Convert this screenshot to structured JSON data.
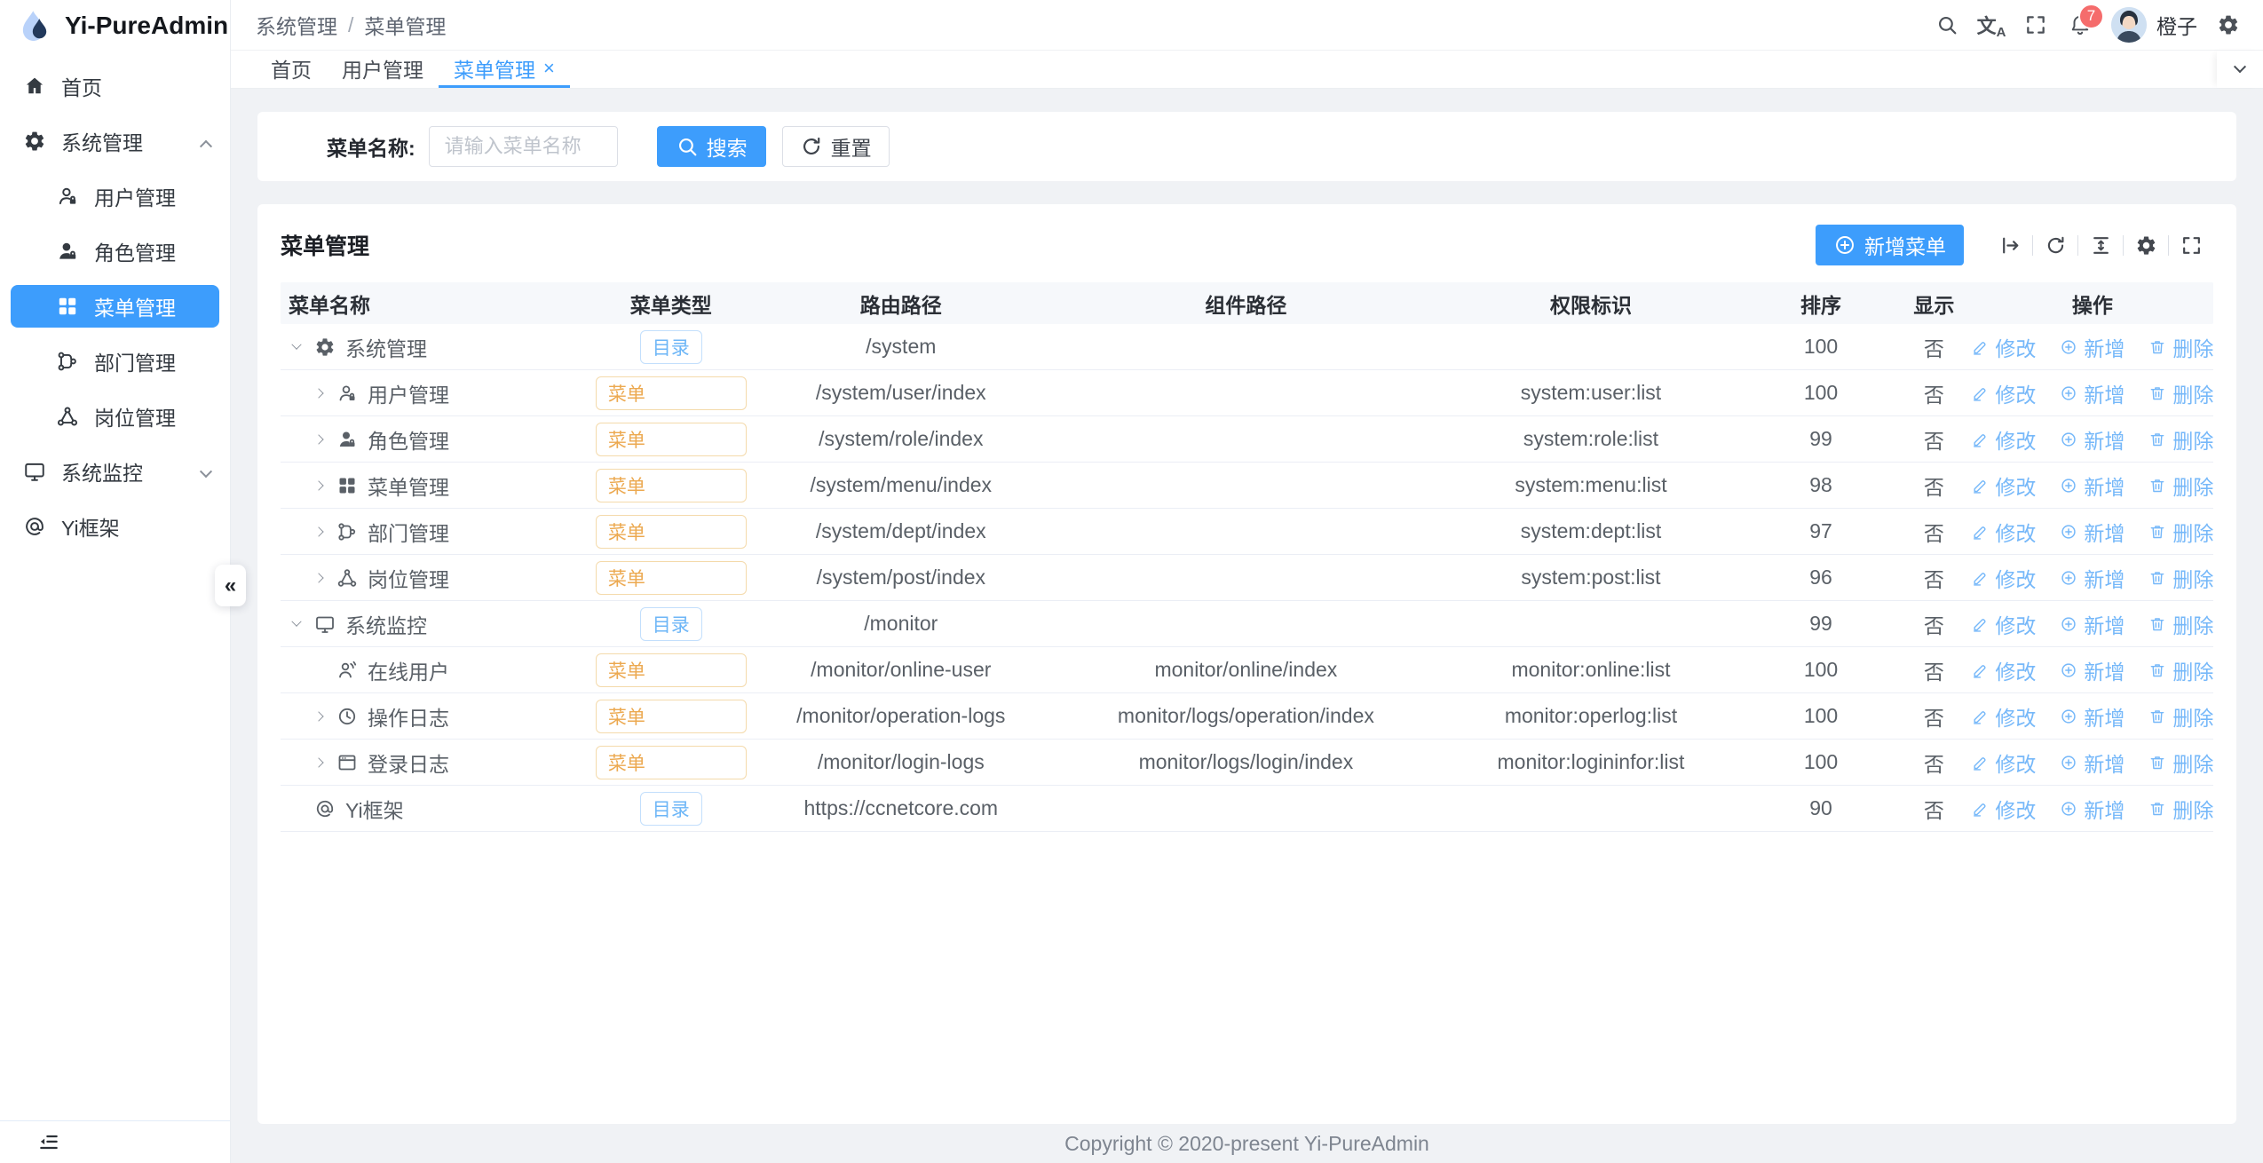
{
  "app": {
    "name": "Yi-PureAdmin"
  },
  "header": {
    "breadcrumb": {
      "items": [
        "系统管理",
        "菜单管理"
      ],
      "separator": "/"
    },
    "icons": [
      "search-icon",
      "translate-icon",
      "fullscreen-icon",
      "bell-icon",
      "gear-icon"
    ],
    "notification_count": "7",
    "username": "橙子"
  },
  "tabbar": {
    "tabs": [
      {
        "key": "home",
        "label": "首页",
        "active": false,
        "closable": false
      },
      {
        "key": "user-mgmt",
        "label": "用户管理",
        "active": false,
        "closable": false
      },
      {
        "key": "menu-mgmt",
        "label": "菜单管理",
        "active": true,
        "closable": true
      }
    ]
  },
  "sidebar": {
    "collapse_glyph": "«",
    "items": [
      {
        "key": "home",
        "icon": "home-icon",
        "label": "首页",
        "child": false
      },
      {
        "key": "system-mgmt",
        "icon": "gear-icon",
        "label": "系统管理",
        "child": false,
        "state": "expanded"
      },
      {
        "key": "user-mgmt",
        "icon": "user-icon",
        "label": "用户管理",
        "child": true
      },
      {
        "key": "role-mgmt",
        "icon": "user-solid-icon",
        "label": "角色管理",
        "child": true
      },
      {
        "key": "menu-mgmt",
        "icon": "grid-icon",
        "label": "菜单管理",
        "child": true,
        "active": true
      },
      {
        "key": "dept-mgmt",
        "icon": "dept-icon",
        "label": "部门管理",
        "child": true
      },
      {
        "key": "post-mgmt",
        "icon": "post-icon",
        "label": "岗位管理",
        "child": true
      },
      {
        "key": "monitor",
        "icon": "monitor-icon",
        "label": "系统监控",
        "child": false,
        "state": "collapsed"
      },
      {
        "key": "yi-framework",
        "icon": "at-icon",
        "label": "Yi框架",
        "child": false
      }
    ]
  },
  "search_form": {
    "label": "菜单名称:",
    "placeholder": "请输入菜单名称",
    "search_button": "搜索",
    "reset_button": "重置"
  },
  "panel": {
    "title": "菜单管理",
    "add_button": "新增菜单",
    "toolbar_icons": [
      "arrow-bar-icon",
      "refresh-icon",
      "density-icon",
      "gear-icon",
      "fullscreen-icon"
    ]
  },
  "table": {
    "headers": [
      "菜单名称",
      "菜单类型",
      "路由路径",
      "组件路径",
      "权限标识",
      "排序",
      "显示",
      "操作"
    ],
    "actions": [
      {
        "icon": "edit-icon",
        "label": "修改"
      },
      {
        "icon": "circle-plus-icon",
        "label": "新增"
      },
      {
        "icon": "trash-icon",
        "label": "删除"
      }
    ],
    "rows": [
      {
        "key": "system-mgmt",
        "level": 0,
        "expand": "down",
        "icon": "gear-icon",
        "name": "系统管理",
        "type": "目录",
        "type_kind": "dir",
        "route": "/system",
        "component": "",
        "perm": "",
        "sort": "100",
        "visible": "否"
      },
      {
        "key": "user-mgmt",
        "level": 1,
        "expand": "right",
        "icon": "user-icon",
        "name": "用户管理",
        "type": "菜单",
        "type_kind": "menu",
        "route": "/system/user/index",
        "component": "",
        "perm": "system:user:list",
        "sort": "100",
        "visible": "否"
      },
      {
        "key": "role-mgmt",
        "level": 1,
        "expand": "right",
        "icon": "user-solid-icon",
        "name": "角色管理",
        "type": "菜单",
        "type_kind": "menu",
        "route": "/system/role/index",
        "component": "",
        "perm": "system:role:list",
        "sort": "99",
        "visible": "否"
      },
      {
        "key": "menu-mgmt",
        "level": 1,
        "expand": "right",
        "icon": "grid-icon",
        "name": "菜单管理",
        "type": "菜单",
        "type_kind": "menu",
        "route": "/system/menu/index",
        "component": "",
        "perm": "system:menu:list",
        "sort": "98",
        "visible": "否"
      },
      {
        "key": "dept-mgmt",
        "level": 1,
        "expand": "right",
        "icon": "dept-icon",
        "name": "部门管理",
        "type": "菜单",
        "type_kind": "menu",
        "route": "/system/dept/index",
        "component": "",
        "perm": "system:dept:list",
        "sort": "97",
        "visible": "否"
      },
      {
        "key": "post-mgmt",
        "level": 1,
        "expand": "right",
        "icon": "post-icon",
        "name": "岗位管理",
        "type": "菜单",
        "type_kind": "menu",
        "route": "/system/post/index",
        "component": "",
        "perm": "system:post:list",
        "sort": "96",
        "visible": "否"
      },
      {
        "key": "monitor",
        "level": 0,
        "expand": "down",
        "icon": "monitor-icon",
        "name": "系统监控",
        "type": "目录",
        "type_kind": "dir",
        "route": "/monitor",
        "component": "",
        "perm": "",
        "sort": "99",
        "visible": "否"
      },
      {
        "key": "online-user",
        "level": 1,
        "expand": "none",
        "icon": "online-user-icon",
        "name": "在线用户",
        "type": "菜单",
        "type_kind": "menu",
        "route": "/monitor/online-user",
        "component": "monitor/online/index",
        "perm": "monitor:online:list",
        "sort": "100",
        "visible": "否"
      },
      {
        "key": "operation-logs",
        "level": 1,
        "expand": "right",
        "icon": "clock-icon",
        "name": "操作日志",
        "type": "菜单",
        "type_kind": "menu",
        "route": "/monitor/operation-logs",
        "component": "monitor/logs/operation/index",
        "perm": "monitor:operlog:list",
        "sort": "100",
        "visible": "否"
      },
      {
        "key": "login-logs",
        "level": 1,
        "expand": "right",
        "icon": "window-icon",
        "name": "登录日志",
        "type": "菜单",
        "type_kind": "menu",
        "route": "/monitor/login-logs",
        "component": "monitor/logs/login/index",
        "perm": "monitor:logininfor:list",
        "sort": "100",
        "visible": "否"
      },
      {
        "key": "yi-framework",
        "level": 0,
        "expand": "none",
        "icon": "at-icon",
        "name": "Yi框架",
        "type": "目录",
        "type_kind": "dir",
        "route": "https://ccnetcore.com",
        "component": "",
        "perm": "",
        "sort": "90",
        "visible": "否"
      }
    ]
  },
  "footer": {
    "copyright": "Copyright © 2020-present Yi-PureAdmin"
  },
  "colors": {
    "primary": "#3d9dfc",
    "link": "#76b8f9",
    "tag_dir": "#6db6f7",
    "tag_menu": "#eca950",
    "badge": "#f56c6c"
  }
}
